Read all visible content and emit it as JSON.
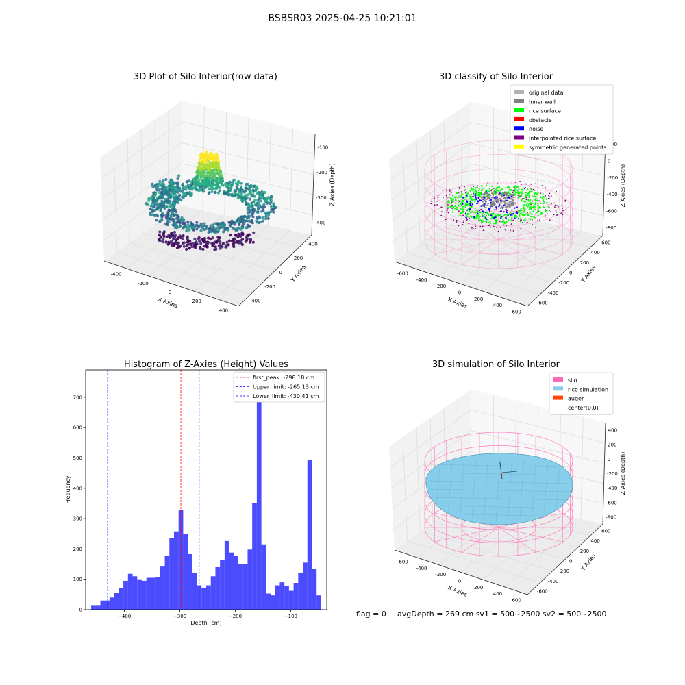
{
  "suptitle": "BSBSR03 2025-04-25 10:21:01",
  "footer": {
    "flag": "flag = 0",
    "stats": "avgDepth = 269 cm  sv1 = 500~2500  sv2 = 500~2500"
  },
  "chart_data": [
    {
      "type": "scatter",
      "title": "3D Plot of Silo Interior(row data)",
      "xlabel": "X Axies",
      "ylabel": "Y Axies",
      "zlabel": "Z Axies (Depth)",
      "x_ticks": [
        "-400",
        "-200",
        "0",
        "200",
        "400"
      ],
      "y_ticks": [
        "-400",
        "-200",
        "0",
        "200",
        "400"
      ],
      "z_ticks": [
        "-100",
        "-200",
        "-300",
        "-400"
      ],
      "colormap": "viridis",
      "grid": true
    },
    {
      "type": "scatter",
      "title": "3D classify of Silo Interior",
      "xlabel": "X Axies",
      "ylabel": "Y Axies",
      "zlabel": "Z Axies (Depth)",
      "x_ticks": [
        "-600",
        "-400",
        "-200",
        "0",
        "200",
        "400",
        "600"
      ],
      "y_ticks": [
        "-600",
        "-400",
        "-200",
        "0",
        "200",
        "400",
        "600"
      ],
      "z_ticks": [
        "200",
        "0",
        "-200",
        "-400",
        "-600",
        "-800"
      ],
      "legend_position": "top-right",
      "legend": [
        {
          "label": "original data",
          "color": "#b3b3b3"
        },
        {
          "label": "inner wall",
          "color": "#808080"
        },
        {
          "label": "rice surface",
          "color": "#00ff00"
        },
        {
          "label": "obstacle",
          "color": "#ff0000"
        },
        {
          "label": "noise",
          "color": "#0000ff"
        },
        {
          "label": "interpolated rice surface",
          "color": "#800080"
        },
        {
          "label": "symmetric generated points",
          "color": "#ffff00"
        }
      ],
      "silo_wire_color": "#ff69b4",
      "grid": true
    },
    {
      "type": "bar",
      "title": "Histogram of Z-Axies (Height) Values",
      "xlabel": "Depth (cm)",
      "ylabel": "Frequency",
      "xlim": [
        -470,
        -35
      ],
      "ylim": [
        0,
        790
      ],
      "x_ticks": [
        -400,
        -300,
        -200,
        -100
      ],
      "y_ticks": [
        0,
        100,
        200,
        300,
        400,
        500,
        600,
        700
      ],
      "bar_color": "#0000ff",
      "bin_start": -460,
      "bin_width": 8.3,
      "values": [
        15,
        15,
        30,
        30,
        40,
        55,
        70,
        95,
        118,
        110,
        100,
        95,
        105,
        105,
        108,
        142,
        178,
        236,
        258,
        328,
        250,
        183,
        122,
        80,
        72,
        80,
        110,
        140,
        163,
        226,
        188,
        178,
        149,
        150,
        198,
        352,
        750,
        215,
        53,
        47,
        80,
        90,
        78,
        62,
        88,
        122,
        155,
        492,
        135,
        47
      ],
      "lines": [
        {
          "label": "first_peak: -298.18 cm",
          "x": -298.18,
          "color": "#ff0000"
        },
        {
          "label": "Upper_limit: -265.13 cm",
          "x": -265.13,
          "color": "#0000ff"
        },
        {
          "label": "Lower_limit: -430.41 cm",
          "x": -430.41,
          "color": "#0000ff"
        }
      ],
      "legend_position": "top-right"
    },
    {
      "type": "area",
      "title": "3D simulation of Silo Interior",
      "xlabel": "X Axies",
      "ylabel": "Y Axies",
      "zlabel": "Z Axies (Depth)",
      "x_ticks": [
        "-600",
        "-400",
        "-200",
        "0",
        "200",
        "400",
        "600"
      ],
      "y_ticks": [
        "-600",
        "-400",
        "-200",
        "0",
        "200",
        "400",
        "600"
      ],
      "z_ticks": [
        "400",
        "200",
        "0",
        "-200",
        "-400",
        "-600",
        "-800"
      ],
      "legend_position": "top-right",
      "legend": [
        {
          "label": "silo",
          "color": "#ff69b4"
        },
        {
          "label": "rice simulation",
          "color": "#87ceeb"
        },
        {
          "label": "auger",
          "color": "#ff4500"
        },
        {
          "label": "center(0,0)",
          "color": "#ffffff"
        }
      ],
      "grid": true
    }
  ]
}
